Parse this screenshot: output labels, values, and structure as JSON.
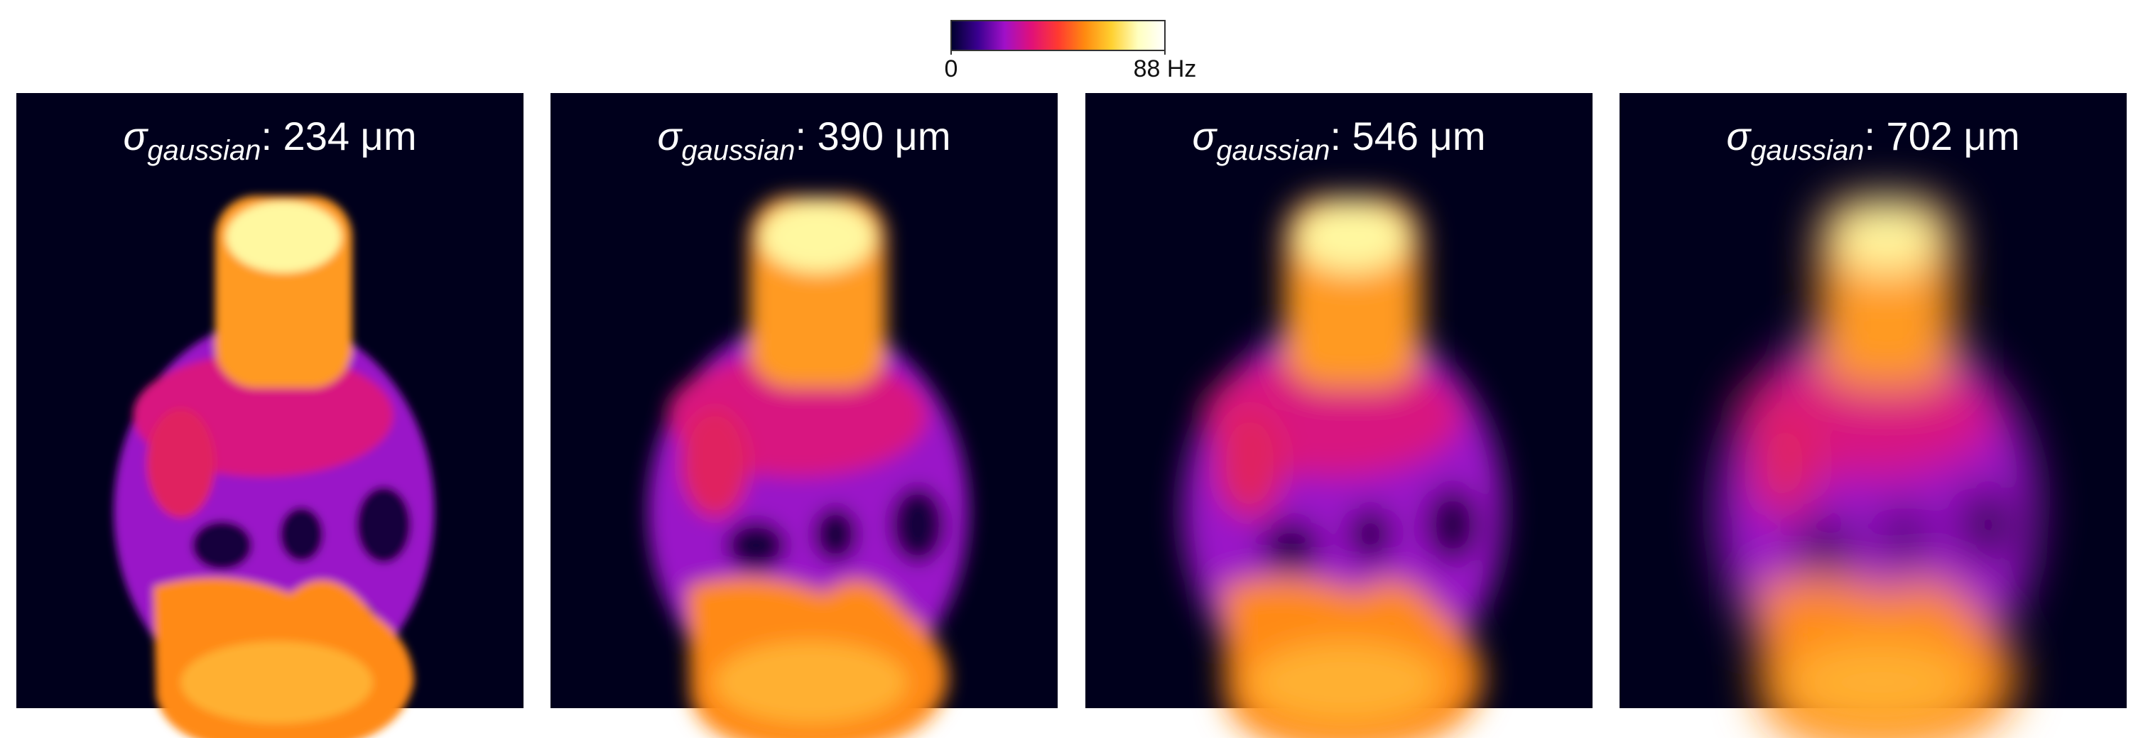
{
  "colorbar": {
    "range": [
      0,
      88
    ],
    "ticks": [
      0,
      {
        "value": 88,
        "label": "88 Hz"
      }
    ],
    "colors": [
      "#00002e",
      "#3a0090",
      "#a010c8",
      "#e0107a",
      "#ff3a30",
      "#ff8a10",
      "#ffd030",
      "#ffffc0",
      "#ffffff"
    ]
  },
  "panels": [
    {
      "symbol": "σ",
      "subscript": "gaussian",
      "text": ": 234 μm"
    },
    {
      "symbol": "σ",
      "subscript": "gaussian",
      "text": ": 390 μm"
    },
    {
      "symbol": "σ",
      "subscript": "gaussian",
      "text": ": 546 μm"
    },
    {
      "symbol": "σ",
      "subscript": "gaussian",
      "text": ": 702 μm"
    }
  ]
}
